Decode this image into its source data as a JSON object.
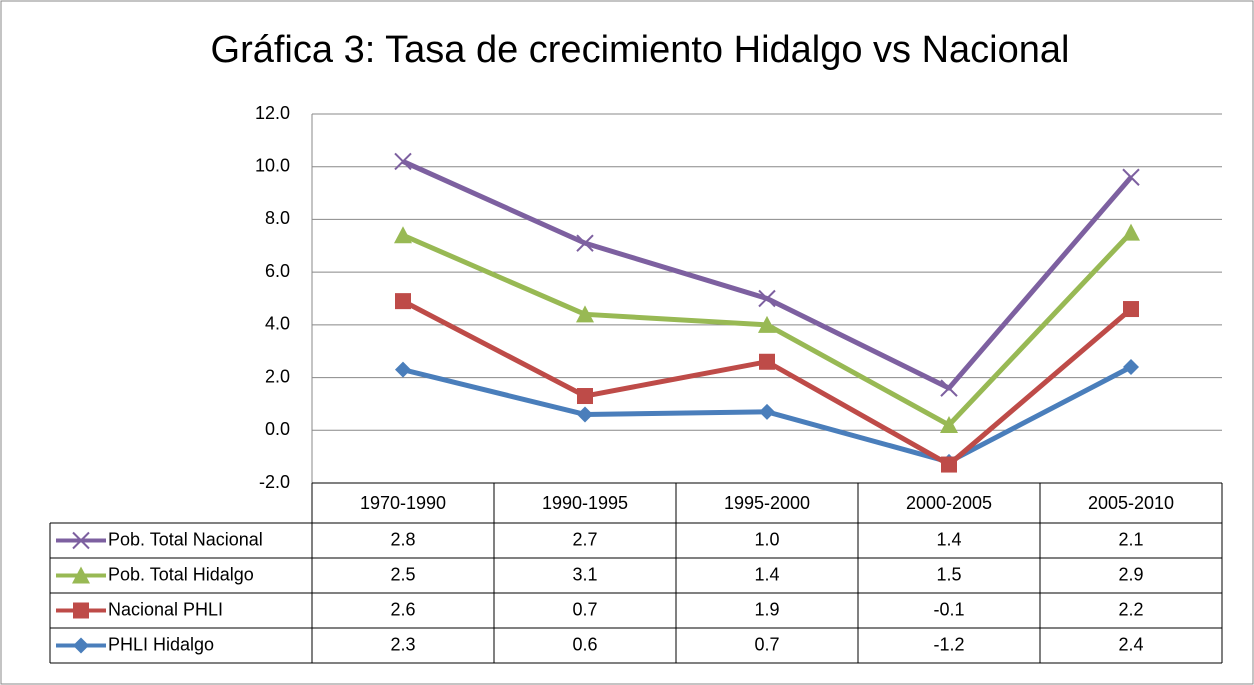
{
  "chart_data": {
    "type": "line",
    "stacked": true,
    "title": "Gráfica 3: Tasa de crecimiento Hidalgo vs Nacional",
    "categories": [
      "1970-1990",
      "1990-1995",
      "1995-2000",
      "2000-2005",
      "2005-2010"
    ],
    "series": [
      {
        "name": "PHLI Hidalgo",
        "color": "#4a7ebb",
        "marker": "diamond",
        "values": [
          2.3,
          0.6,
          0.7,
          -1.2,
          2.4
        ],
        "value_labels": [
          "2.3",
          "0.6",
          "0.7",
          "-1.2",
          "2.4"
        ]
      },
      {
        "name": "Nacional PHLI",
        "color": "#be4b48",
        "marker": "square",
        "values": [
          2.6,
          0.7,
          1.9,
          -0.1,
          2.2
        ],
        "value_labels": [
          "2.6",
          "0.7",
          "1.9",
          "-0.1",
          "2.2"
        ]
      },
      {
        "name": "Pob. Total Hidalgo",
        "color": "#98b954",
        "marker": "triangle",
        "values": [
          2.5,
          3.1,
          1.4,
          1.5,
          2.9
        ],
        "value_labels": [
          "2.5",
          "3.1",
          "1.4",
          "1.5",
          "2.9"
        ]
      },
      {
        "name": "Pob. Total Nacional",
        "color": "#7d60a0",
        "marker": "x",
        "values": [
          2.8,
          2.7,
          1.0,
          1.4,
          2.1
        ],
        "value_labels": [
          "2.8",
          "2.7",
          "1.0",
          "1.4",
          "2.1"
        ]
      }
    ],
    "ylim": [
      -2,
      12
    ],
    "yticks": [
      {
        "value": -2,
        "label": "-2.0"
      },
      {
        "value": 0,
        "label": "0.0"
      },
      {
        "value": 2,
        "label": "2.0"
      },
      {
        "value": 4,
        "label": "4.0"
      },
      {
        "value": 6,
        "label": "6.0"
      },
      {
        "value": 8,
        "label": "8.0"
      },
      {
        "value": 10,
        "label": "10.0"
      },
      {
        "value": 12,
        "label": "12.0"
      }
    ],
    "grid": true,
    "data_table": true
  }
}
